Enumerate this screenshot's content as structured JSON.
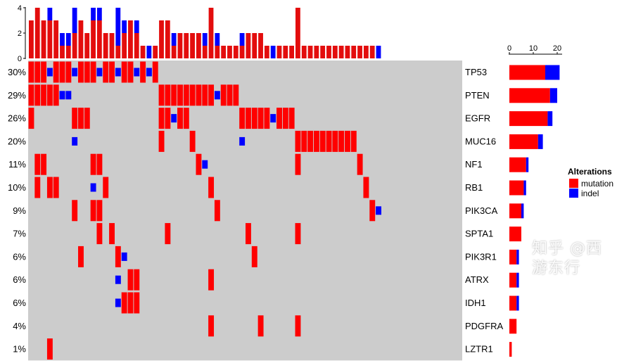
{
  "chart_data": {
    "type": "oncoprint",
    "n_samples": 70,
    "colors": {
      "mutation": "#ff0000",
      "indel": "#0000ff",
      "background": "#cccccc",
      "top_bar_mutation": "#e30d0d"
    },
    "top_axis": {
      "ylim": [
        0,
        4
      ],
      "ticks": [
        "0",
        "2",
        "4"
      ]
    },
    "right_axis": {
      "xlim": [
        0,
        21
      ],
      "ticks": [
        "0",
        "10",
        "20"
      ]
    },
    "legend": {
      "title": "Alterations",
      "position": "right",
      "entries": [
        {
          "key": "mutation",
          "label": "mutation"
        },
        {
          "key": "indel",
          "label": "indel"
        }
      ]
    },
    "genes": [
      {
        "name": "TP53",
        "pct": "30%",
        "mutation": [
          0,
          1,
          2,
          4,
          5,
          6,
          8,
          9,
          10,
          12,
          13,
          15,
          16,
          18,
          20
        ],
        "indel": [
          3,
          7,
          11,
          14,
          17,
          19
        ]
      },
      {
        "name": "PTEN",
        "pct": "29%",
        "mutation": [
          0,
          1,
          2,
          3,
          4,
          21,
          22,
          23,
          24,
          25,
          26,
          27,
          28,
          29,
          31,
          32,
          33
        ],
        "indel": [
          5,
          6,
          30
        ]
      },
      {
        "name": "EGFR",
        "pct": "26%",
        "mutation": [
          0,
          7,
          8,
          9,
          21,
          22,
          24,
          25,
          34,
          35,
          36,
          37,
          38,
          40,
          41,
          42
        ],
        "indel": [
          23,
          39
        ]
      },
      {
        "name": "MUC16",
        "pct": "20%",
        "mutation": [
          21,
          26,
          43,
          44,
          45,
          46,
          47,
          48,
          49,
          50,
          51,
          52
        ],
        "indel": [
          7,
          34
        ]
      },
      {
        "name": "NF1",
        "pct": "11%",
        "mutation": [
          1,
          2,
          10,
          11,
          27,
          43,
          53
        ],
        "indel": [
          28
        ]
      },
      {
        "name": "RB1",
        "pct": "10%",
        "mutation": [
          1,
          3,
          4,
          12,
          29,
          54
        ],
        "indel": [
          10
        ]
      },
      {
        "name": "PIK3CA",
        "pct": "9%",
        "mutation": [
          7,
          10,
          11,
          30,
          55
        ],
        "indel": [
          56
        ]
      },
      {
        "name": "SPTA1",
        "pct": "7%",
        "mutation": [
          11,
          13,
          22,
          35,
          43
        ],
        "indel": []
      },
      {
        "name": "PIK3R1",
        "pct": "6%",
        "mutation": [
          8,
          14,
          36
        ],
        "indel": [
          15
        ]
      },
      {
        "name": "ATRX",
        "pct": "6%",
        "mutation": [
          16,
          17,
          29
        ],
        "indel": [
          14
        ]
      },
      {
        "name": "IDH1",
        "pct": "6%",
        "mutation": [
          15,
          16,
          17
        ],
        "indel": [
          14
        ]
      },
      {
        "name": "PDGFRA",
        "pct": "4%",
        "mutation": [
          29,
          37,
          43
        ],
        "indel": []
      },
      {
        "name": "LZTR1",
        "pct": "1%",
        "mutation": [
          3
        ],
        "indel": []
      }
    ]
  },
  "watermark": "知乎 @西游东行"
}
